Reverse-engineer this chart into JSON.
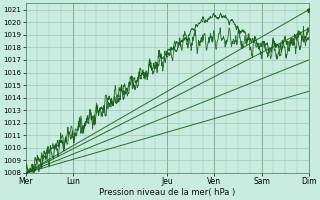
{
  "xlabel": "Pression niveau de la mer( hPa )",
  "bg_color": "#c8ece0",
  "grid_color": "#9abfaa",
  "line_color": "#1a5c1a",
  "ylim": [
    1008,
    1021.5
  ],
  "xlim": [
    0,
    144
  ],
  "xtick_positions": [
    0,
    24,
    72,
    96,
    120,
    144
  ],
  "xtick_labels": [
    "Mer",
    "Lun",
    "Jeu",
    "Ven",
    "Sam",
    "Dim"
  ],
  "ytick_positions": [
    1008,
    1009,
    1010,
    1011,
    1012,
    1013,
    1014,
    1015,
    1016,
    1017,
    1018,
    1019,
    1020,
    1021
  ],
  "day_vlines": [
    24,
    72,
    96,
    120
  ]
}
